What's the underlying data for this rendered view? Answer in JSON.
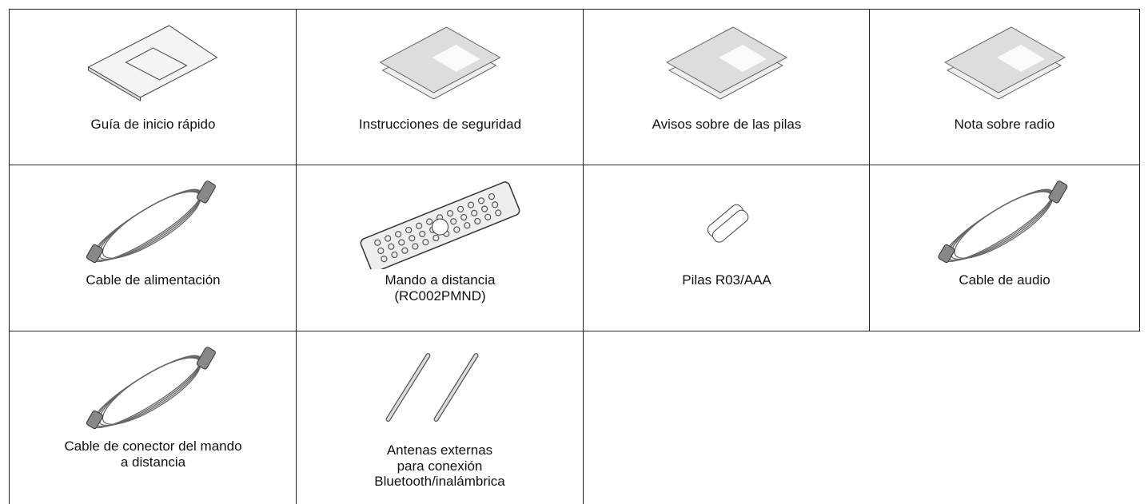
{
  "table": {
    "rows": [
      [
        {
          "lines": [
            "Guía de inicio rápido"
          ]
        },
        {
          "lines": [
            "Instrucciones de seguridad"
          ]
        },
        {
          "lines": [
            "Avisos sobre de las pilas"
          ]
        },
        {
          "lines": [
            "Nota sobre radio"
          ]
        }
      ],
      [
        {
          "lines": [
            "Cable de alimentación"
          ]
        },
        {
          "lines": [
            "Mando a distancia",
            "(RC002PMND)"
          ]
        },
        {
          "lines": [
            "Pilas R03/AAA"
          ]
        },
        {
          "lines": [
            "Cable de audio"
          ]
        }
      ],
      [
        {
          "lines": [
            "Cable de conector del mando",
            "a distancia"
          ]
        },
        {
          "lines": [
            "Antenas externas",
            "para conexión",
            "Bluetooth/inalámbrica"
          ]
        }
      ]
    ]
  }
}
